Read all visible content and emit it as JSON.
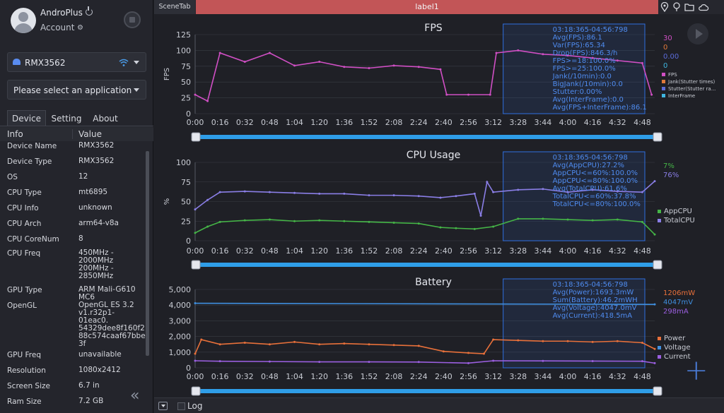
{
  "profile": {
    "name": "AndroPlus",
    "account_label": "Account"
  },
  "device_select": {
    "value": "RMX3562"
  },
  "app_select": {
    "placeholder": "Please select an application"
  },
  "tabs": [
    {
      "label": "Device"
    },
    {
      "label": "Setting"
    },
    {
      "label": "About"
    }
  ],
  "info_table": {
    "headers": {
      "key": "Info",
      "value": "Value"
    },
    "rows": [
      {
        "key": "Device Name",
        "value": "RMX3562"
      },
      {
        "key": "Device Type",
        "value": "RMX3562"
      },
      {
        "key": "OS",
        "value": "12"
      },
      {
        "key": "CPU Type",
        "value": "mt6895"
      },
      {
        "key": "CPU Info",
        "value": "unknown"
      },
      {
        "key": "CPU Arch",
        "value": "arm64-v8a"
      },
      {
        "key": "CPU CoreNum",
        "value": "8"
      },
      {
        "key": "CPU Freq",
        "value": "450MHz -\n2000MHz\n200MHz -\n2850MHz"
      },
      {
        "key": "GPU Type",
        "value": "ARM Mali-G610\nMC6"
      },
      {
        "key": "OpenGL",
        "value": "OpenGL ES 3.2\nv1.r32p1-01eac0.\n54329dee8f160f2\n88c574caaf67bbe\n3f"
      },
      {
        "key": "GPU Freq",
        "value": "unavailable"
      },
      {
        "key": "Resolution",
        "value": "1080x2412"
      },
      {
        "key": "Screen Size",
        "value": "6.7 in"
      },
      {
        "key": "Ram Size",
        "value": "7.2 GB"
      }
    ]
  },
  "scene_tab": "SceneTab",
  "scene_label": "label1",
  "log": {
    "label": "Log"
  },
  "colors": {
    "fps": "#d04fc4",
    "jank": "#e07a3a",
    "stutter": "#5b6bd8",
    "interframe": "#3fb6e0",
    "appcpu": "#45b547",
    "totalcpu": "#8a7ee6",
    "power": "#e8703a",
    "voltage": "#3f8fe0",
    "current": "#9b5fe0",
    "selection": "#2f6fe0",
    "label_bar": "#c25557"
  },
  "chart_data": [
    {
      "type": "line",
      "title": "FPS",
      "ylabel": "FPS",
      "ylim": [
        0,
        125
      ],
      "yticks": [
        "0",
        "25",
        "50",
        "75",
        "100",
        "125"
      ],
      "xticks": [
        "0:00",
        "0:16",
        "0:32",
        "0:48",
        "1:04",
        "1:20",
        "1:36",
        "1:52",
        "2:08",
        "2:24",
        "2:40",
        "2:56",
        "3:12",
        "3:28",
        "3:44",
        "4:00",
        "4:16",
        "4:32",
        "4:48"
      ],
      "series": [
        {
          "name": "FPS",
          "color": "#d04fc4",
          "current": "30",
          "x": [
            "0:00",
            "0:08",
            "0:16",
            "0:32",
            "0:48",
            "1:04",
            "1:20",
            "1:36",
            "1:52",
            "2:08",
            "2:24",
            "2:38",
            "2:42",
            "2:56",
            "3:10",
            "3:14",
            "3:28",
            "3:44",
            "4:00",
            "4:16",
            "4:32",
            "4:48",
            "4:54"
          ],
          "values": [
            30,
            20,
            96,
            82,
            96,
            76,
            82,
            74,
            72,
            76,
            74,
            70,
            30,
            30,
            30,
            96,
            100,
            94,
            92,
            88,
            84,
            80,
            30
          ]
        },
        {
          "name": "Jank(Stutter times)",
          "color": "#e07a3a",
          "current": "0"
        },
        {
          "name": "Stutter(Stutter ra...",
          "color": "#5b6bd8",
          "current": "0.00"
        },
        {
          "name": "InterFrame",
          "color": "#3fb6e0",
          "current": "0"
        }
      ],
      "selection_stats": [
        "03:18:365-04:56:798",
        "Avg(FPS):86.1",
        "Var(FPS):65.34",
        "Drop(FPS):846.3/h",
        "FPS>=18:100.0%",
        "FPS>=25:100.0%",
        "Jank(/10min):0.0",
        "BigJank(/10min):0.0",
        "Stutter:0.00%",
        "Avg(InterFrame):0.0",
        "Avg(FPS+InterFrame):86.1"
      ]
    },
    {
      "type": "line",
      "title": "CPU Usage",
      "ylabel": "%",
      "ylim": [
        0,
        100
      ],
      "yticks": [
        "0",
        "25",
        "50",
        "75",
        "100"
      ],
      "xticks": [
        "0:00",
        "0:16",
        "0:32",
        "0:48",
        "1:04",
        "1:20",
        "1:36",
        "1:52",
        "2:08",
        "2:24",
        "2:40",
        "2:56",
        "3:12",
        "3:28",
        "3:44",
        "4:00",
        "4:16",
        "4:32",
        "4:48"
      ],
      "series": [
        {
          "name": "AppCPU",
          "color": "#45b547",
          "current": "7%",
          "x": [
            "0:00",
            "0:08",
            "0:16",
            "0:32",
            "0:48",
            "1:04",
            "1:20",
            "1:36",
            "1:52",
            "2:08",
            "2:24",
            "2:38",
            "2:48",
            "3:00",
            "3:12",
            "3:28",
            "3:44",
            "4:00",
            "4:16",
            "4:32",
            "4:48",
            "4:56"
          ],
          "values": [
            10,
            18,
            24,
            26,
            27,
            25,
            26,
            25,
            24,
            23,
            22,
            17,
            16,
            15,
            18,
            28,
            28,
            27,
            26,
            27,
            24,
            8
          ]
        },
        {
          "name": "TotalCPU",
          "color": "#8a7ee6",
          "current": "76%",
          "x": [
            "0:00",
            "0:08",
            "0:16",
            "0:32",
            "0:48",
            "1:04",
            "1:20",
            "1:36",
            "1:52",
            "2:08",
            "2:24",
            "2:38",
            "2:48",
            "3:00",
            "3:04",
            "3:08",
            "3:12",
            "3:28",
            "3:44",
            "4:00",
            "4:16",
            "4:32",
            "4:48",
            "4:56"
          ],
          "values": [
            40,
            52,
            62,
            63,
            62,
            61,
            60,
            60,
            58,
            58,
            57,
            55,
            57,
            60,
            32,
            75,
            62,
            65,
            66,
            62,
            65,
            63,
            62,
            76
          ]
        }
      ],
      "selection_stats": [
        "03:18:365-04:56:798",
        "Avg(AppCPU):27.2%",
        "AppCPU<=60%:100.0%",
        "AppCPU<=80%:100.0%",
        "Avg(TotalCPU):61.6%",
        "TotalCPU<=60%:37.8%",
        "TotalCPU<=80%:100.0%"
      ]
    },
    {
      "type": "line",
      "title": "Battery",
      "ylim": [
        0,
        5000
      ],
      "yticks": [
        "0",
        "1,000",
        "2,000",
        "3,000",
        "4,000",
        "5,000"
      ],
      "xticks": [
        "0:00",
        "0:16",
        "0:32",
        "0:48",
        "1:04",
        "1:20",
        "1:36",
        "1:52",
        "2:08",
        "2:24",
        "2:40",
        "2:56",
        "3:12",
        "3:28",
        "3:44",
        "4:00",
        "4:16",
        "4:32",
        "4:48"
      ],
      "series": [
        {
          "name": "Power",
          "color": "#e8703a",
          "current": "1206mW",
          "x": [
            "0:00",
            "0:04",
            "0:16",
            "0:32",
            "0:48",
            "1:04",
            "1:20",
            "1:36",
            "1:52",
            "2:08",
            "2:24",
            "2:40",
            "2:56",
            "3:06",
            "3:12",
            "3:28",
            "3:44",
            "4:00",
            "4:16",
            "4:32",
            "4:48",
            "4:56"
          ],
          "values": [
            900,
            1800,
            1500,
            1600,
            1500,
            1650,
            1500,
            1550,
            1500,
            1450,
            1400,
            1050,
            950,
            900,
            1800,
            1750,
            1700,
            1700,
            1650,
            1700,
            1600,
            1206
          ]
        },
        {
          "name": "Voltage",
          "color": "#3f8fe0",
          "current": "4047mV",
          "x": [
            "0:00",
            "4:56"
          ],
          "values": [
            4120,
            4047
          ]
        },
        {
          "name": "Current",
          "color": "#9b5fe0",
          "current": "298mA",
          "x": [
            "0:00",
            "0:16",
            "0:48",
            "1:20",
            "1:52",
            "2:24",
            "2:56",
            "3:12",
            "3:44",
            "4:16",
            "4:48",
            "4:56"
          ],
          "values": [
            450,
            420,
            400,
            380,
            380,
            370,
            300,
            450,
            440,
            430,
            420,
            298
          ]
        }
      ],
      "selection_stats": [
        "03:18:365-04:56:798",
        "Avg(Power):1693.3mW",
        "Sum(Battery):46.2mWH",
        "Avg(Voltage):4047.0mV",
        "Avg(Current):418.5mA"
      ]
    }
  ]
}
